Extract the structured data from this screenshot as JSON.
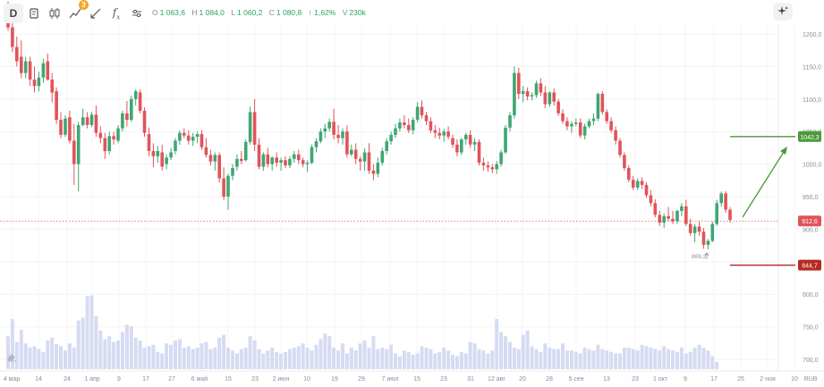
{
  "toolbar": {
    "interval": "D",
    "indicators_badge": "3",
    "fx_label": "f",
    "fx_sub": "x",
    "icons": [
      "chart-type-icon",
      "candles-icon",
      "indicators-icon",
      "drawing-icon",
      "fx-icon",
      "settings-sliders-icon"
    ]
  },
  "ohlc": {
    "o_key": "O",
    "o_val": "1 063,6",
    "h_key": "H",
    "h_val": "1 084,0",
    "l_key": "L",
    "l_val": "1 060,2",
    "c_key": "C",
    "c_val": "1 080,8",
    "change": "↑ 1,62%",
    "v_key": "V",
    "v_val": "230k"
  },
  "price_axis": {
    "ticks": [
      "1200,0",
      "1150,0",
      "1100,0",
      "1050,0",
      "1000,0",
      "950,0",
      "900,0",
      "850,0",
      "800,0",
      "750,0",
      "700,0"
    ],
    "currency": "RUB"
  },
  "time_axis": {
    "ticks": [
      "4 мар",
      "14",
      "24",
      "1 апр",
      "9",
      "17",
      "27",
      "6 май",
      "15",
      "23",
      "2 июн",
      "10",
      "19",
      "29",
      "7 июл",
      "15",
      "23",
      "31",
      "12 авг",
      "20",
      "28",
      "5 сен",
      "13",
      "23",
      "1 окт",
      "9",
      "17",
      "25",
      "2 ноя",
      "10"
    ]
  },
  "price_labels": {
    "current": "912,6",
    "target": "1042,3",
    "stop": "844,7",
    "low_annotation": "869,2"
  },
  "colors": {
    "up": "#3fa672",
    "down": "#e0545a",
    "volume": "#d6dbf3",
    "current_line": "#e0545a",
    "target": "#4a9a3a",
    "stop": "#b62a22",
    "axis_text": "#8a8e96",
    "ohlc_text": "#2e9e62"
  },
  "chart_data": {
    "type": "candlestick",
    "x_start": "4 мар",
    "ylim": [
      690,
      1225
    ],
    "candles": [
      [
        1240,
        1250,
        1205,
        1210
      ],
      [
        1210,
        1222,
        1172,
        1180
      ],
      [
        1180,
        1196,
        1150,
        1158
      ],
      [
        1165,
        1190,
        1132,
        1140
      ],
      [
        1140,
        1165,
        1132,
        1158
      ],
      [
        1158,
        1165,
        1120,
        1130
      ],
      [
        1130,
        1150,
        1110,
        1120
      ],
      [
        1120,
        1142,
        1112,
        1133
      ],
      [
        1133,
        1162,
        1125,
        1155
      ],
      [
        1158,
        1170,
        1128,
        1130
      ],
      [
        1130,
        1140,
        1095,
        1110
      ],
      [
        1112,
        1118,
        1062,
        1068
      ],
      [
        1068,
        1080,
        1040,
        1045
      ],
      [
        1045,
        1075,
        1042,
        1070
      ],
      [
        1072,
        1082,
        1032,
        1036
      ],
      [
        1036,
        1062,
        968,
        1000
      ],
      [
        1000,
        1065,
        958,
        1060
      ],
      [
        1060,
        1085,
        1058,
        1072
      ],
      [
        1072,
        1080,
        1055,
        1060
      ],
      [
        1060,
        1080,
        1057,
        1076
      ],
      [
        1076,
        1090,
        1042,
        1048
      ],
      [
        1048,
        1058,
        1032,
        1040
      ],
      [
        1040,
        1048,
        1008,
        1020
      ],
      [
        1020,
        1050,
        1015,
        1043
      ],
      [
        1043,
        1050,
        1030,
        1038
      ],
      [
        1036,
        1060,
        1032,
        1055
      ],
      [
        1055,
        1082,
        1050,
        1078
      ],
      [
        1078,
        1097,
        1058,
        1068
      ],
      [
        1068,
        1105,
        1065,
        1100
      ],
      [
        1100,
        1115,
        1090,
        1112
      ],
      [
        1110,
        1115,
        1078,
        1082
      ],
      [
        1082,
        1087,
        1042,
        1048
      ],
      [
        1046,
        1056,
        1012,
        1020
      ],
      [
        1020,
        1032,
        995,
        1012
      ],
      [
        1012,
        1028,
        1002,
        1020
      ],
      [
        1018,
        1030,
        990,
        996
      ],
      [
        1000,
        1015,
        992,
        1010
      ],
      [
        1010,
        1025,
        1006,
        1018
      ],
      [
        1020,
        1040,
        1015,
        1036
      ],
      [
        1036,
        1052,
        1030,
        1048
      ],
      [
        1048,
        1055,
        1040,
        1044
      ],
      [
        1044,
        1052,
        1030,
        1036
      ],
      [
        1036,
        1048,
        1028,
        1042
      ],
      [
        1042,
        1050,
        1032,
        1046
      ],
      [
        1046,
        1052,
        1022,
        1026
      ],
      [
        1026,
        1040,
        1010,
        1014
      ],
      [
        1014,
        1022,
        998,
        1004
      ],
      [
        1004,
        1018,
        990,
        1014
      ],
      [
        1014,
        1018,
        972,
        978
      ],
      [
        978,
        995,
        945,
        950
      ],
      [
        950,
        985,
        930,
        982
      ],
      [
        982,
        1000,
        975,
        994
      ],
      [
        996,
        1015,
        990,
        1008
      ],
      [
        1008,
        1020,
        1000,
        1005
      ],
      [
        1006,
        1038,
        1004,
        1034
      ],
      [
        1034,
        1088,
        1030,
        1080
      ],
      [
        1080,
        1100,
        1020,
        1030
      ],
      [
        1030,
        1040,
        992,
        996
      ],
      [
        996,
        1018,
        990,
        1015
      ],
      [
        1015,
        1025,
        995,
        1000
      ],
      [
        1000,
        1012,
        990,
        1010
      ],
      [
        1010,
        1018,
        996,
        1002
      ],
      [
        1002,
        1010,
        990,
        1006
      ],
      [
        1006,
        1012,
        994,
        998
      ],
      [
        998,
        1012,
        994,
        1008
      ],
      [
        1008,
        1020,
        1002,
        1015
      ],
      [
        1015,
        1022,
        1000,
        1006
      ],
      [
        1006,
        1010,
        995,
        1000
      ],
      [
        1000,
        1006,
        988,
        1002
      ],
      [
        1002,
        1030,
        1000,
        1026
      ],
      [
        1026,
        1040,
        1018,
        1035
      ],
      [
        1035,
        1055,
        1032,
        1050
      ],
      [
        1050,
        1062,
        1040,
        1055
      ],
      [
        1055,
        1070,
        1050,
        1065
      ],
      [
        1065,
        1085,
        1038,
        1045
      ],
      [
        1045,
        1060,
        1032,
        1040
      ],
      [
        1040,
        1055,
        1030,
        1050
      ],
      [
        1050,
        1060,
        1010,
        1015
      ],
      [
        1015,
        1030,
        1012,
        1022
      ],
      [
        1022,
        1032,
        1000,
        1008
      ],
      [
        1008,
        1012,
        990,
        1004
      ],
      [
        1004,
        1024,
        990,
        1018
      ],
      [
        1018,
        1032,
        985,
        990
      ],
      [
        990,
        1000,
        975,
        985
      ],
      [
        985,
        1010,
        980,
        1002
      ],
      [
        1002,
        1025,
        998,
        1020
      ],
      [
        1020,
        1040,
        1015,
        1035
      ],
      [
        1035,
        1050,
        1030,
        1045
      ],
      [
        1045,
        1062,
        1040,
        1055
      ],
      [
        1055,
        1070,
        1050,
        1064
      ],
      [
        1064,
        1075,
        1055,
        1060
      ],
      [
        1060,
        1070,
        1048,
        1052
      ],
      [
        1052,
        1072,
        1046,
        1068
      ],
      [
        1068,
        1095,
        1064,
        1088
      ],
      [
        1088,
        1098,
        1070,
        1075
      ],
      [
        1075,
        1080,
        1060,
        1066
      ],
      [
        1066,
        1072,
        1048,
        1052
      ],
      [
        1052,
        1060,
        1040,
        1048
      ],
      [
        1048,
        1056,
        1038,
        1044
      ],
      [
        1044,
        1054,
        1034,
        1050
      ],
      [
        1050,
        1058,
        1038,
        1042
      ],
      [
        1040,
        1045,
        1025,
        1030
      ],
      [
        1030,
        1038,
        1012,
        1018
      ],
      [
        1018,
        1040,
        1014,
        1038
      ],
      [
        1038,
        1048,
        1030,
        1045
      ],
      [
        1045,
        1052,
        1025,
        1030
      ],
      [
        1030,
        1040,
        1020,
        1034
      ],
      [
        1034,
        1038,
        998,
        1002
      ],
      [
        1002,
        1010,
        990,
        998
      ],
      [
        998,
        1004,
        988,
        995
      ],
      [
        995,
        1000,
        986,
        992
      ],
      [
        992,
        1005,
        985,
        1000
      ],
      [
        1000,
        1022,
        996,
        1018
      ],
      [
        1018,
        1060,
        1016,
        1056
      ],
      [
        1056,
        1080,
        1050,
        1075
      ],
      [
        1075,
        1150,
        1070,
        1140
      ],
      [
        1140,
        1148,
        1100,
        1108
      ],
      [
        1108,
        1120,
        1095,
        1112
      ],
      [
        1112,
        1118,
        1098,
        1104
      ],
      [
        1104,
        1110,
        1098,
        1106
      ],
      [
        1106,
        1128,
        1102,
        1124
      ],
      [
        1124,
        1132,
        1105,
        1110
      ],
      [
        1110,
        1120,
        1086,
        1092
      ],
      [
        1092,
        1112,
        1088,
        1110
      ],
      [
        1110,
        1116,
        1090,
        1096
      ],
      [
        1096,
        1100,
        1074,
        1078
      ],
      [
        1078,
        1084,
        1062,
        1066
      ],
      [
        1066,
        1072,
        1052,
        1058
      ],
      [
        1058,
        1066,
        1048,
        1062
      ],
      [
        1062,
        1070,
        1058,
        1064
      ],
      [
        1064,
        1070,
        1040,
        1044
      ],
      [
        1044,
        1062,
        1038,
        1058
      ],
      [
        1058,
        1070,
        1055,
        1066
      ],
      [
        1066,
        1078,
        1060,
        1070
      ],
      [
        1070,
        1110,
        1066,
        1108
      ],
      [
        1108,
        1112,
        1076,
        1080
      ],
      [
        1080,
        1084,
        1062,
        1066
      ],
      [
        1066,
        1072,
        1048,
        1052
      ],
      [
        1052,
        1058,
        1030,
        1036
      ],
      [
        1036,
        1040,
        1010,
        1014
      ],
      [
        1014,
        1018,
        990,
        994
      ],
      [
        994,
        998,
        972,
        976
      ],
      [
        976,
        982,
        960,
        964
      ],
      [
        964,
        978,
        960,
        974
      ],
      [
        974,
        980,
        962,
        968
      ],
      [
        968,
        972,
        948,
        952
      ],
      [
        952,
        960,
        935,
        940
      ],
      [
        940,
        946,
        918,
        922
      ],
      [
        922,
        928,
        905,
        910
      ],
      [
        910,
        924,
        902,
        920
      ],
      [
        920,
        934,
        912,
        916
      ],
      [
        916,
        928,
        908,
        912
      ],
      [
        912,
        930,
        908,
        928
      ],
      [
        928,
        940,
        920,
        935
      ],
      [
        935,
        945,
        905,
        908
      ],
      [
        908,
        916,
        890,
        894
      ],
      [
        894,
        908,
        880,
        904
      ],
      [
        904,
        912,
        890,
        896
      ],
      [
        896,
        902,
        870,
        876
      ],
      [
        876,
        885,
        869,
        882
      ],
      [
        882,
        912,
        880,
        908
      ],
      [
        908,
        945,
        905,
        940
      ],
      [
        940,
        958,
        935,
        955
      ],
      [
        955,
        958,
        925,
        930
      ],
      [
        930,
        934,
        910,
        914
      ]
    ],
    "volumes": [
      46,
      70,
      38,
      55,
      36,
      30,
      32,
      28,
      24,
      40,
      44,
      35,
      32,
      26,
      36,
      30,
      68,
      72,
      102,
      103,
      74,
      54,
      42,
      46,
      38,
      40,
      52,
      62,
      60,
      44,
      40,
      30,
      32,
      34,
      24,
      22,
      36,
      34,
      40,
      42,
      30,
      32,
      28,
      30,
      36,
      38,
      28,
      30,
      44,
      48,
      30,
      26,
      22,
      28,
      30,
      46,
      40,
      28,
      22,
      26,
      30,
      24,
      22,
      24,
      28,
      30,
      32,
      36,
      30,
      26,
      34,
      42,
      50,
      46,
      30,
      26,
      36,
      22,
      30,
      26,
      36,
      40,
      30,
      46,
      28,
      30,
      28,
      34,
      22,
      18,
      26,
      24,
      20,
      22,
      32,
      30,
      28,
      22,
      24,
      30,
      26,
      20,
      18,
      24,
      22,
      38,
      36,
      28,
      26,
      22,
      26,
      70,
      52,
      46,
      38,
      30,
      28,
      48,
      54,
      32,
      28,
      24,
      36,
      30,
      28,
      28,
      36,
      26,
      26,
      24,
      22,
      30,
      28,
      26,
      34,
      28,
      26,
      24,
      22,
      22,
      30,
      30,
      28,
      26,
      34,
      32,
      30,
      28,
      26,
      32,
      28,
      26,
      24,
      30,
      22,
      24,
      30,
      34,
      30,
      26,
      18,
      10
    ]
  }
}
